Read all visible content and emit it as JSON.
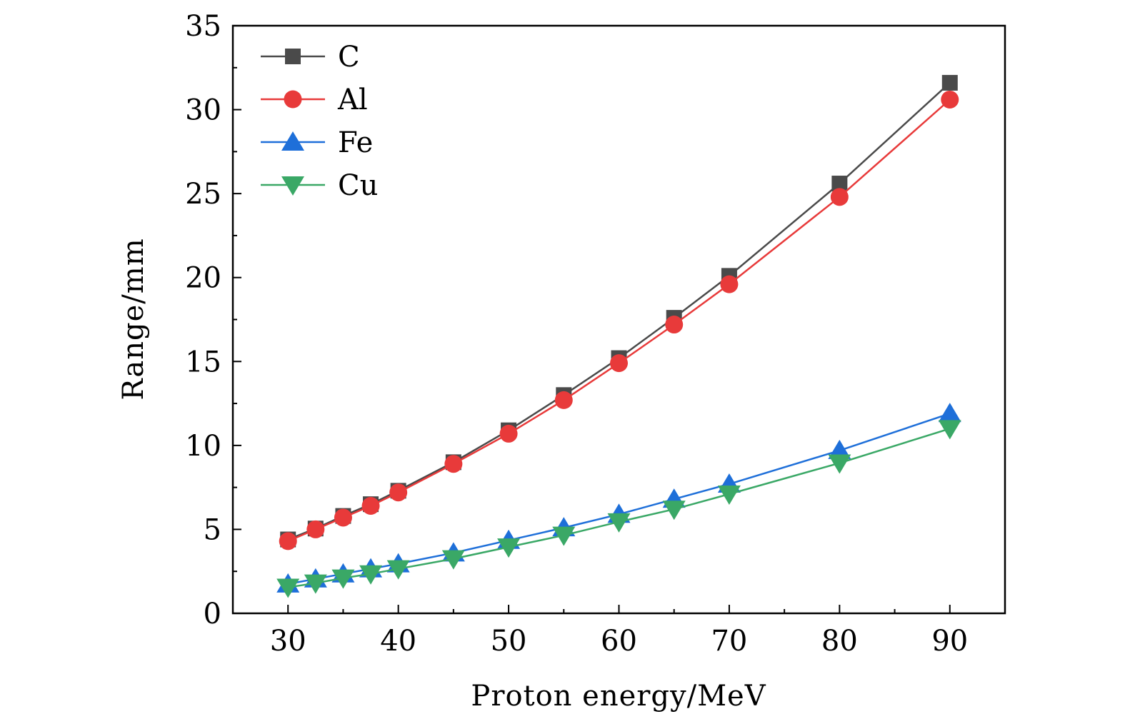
{
  "chart_data": {
    "type": "line",
    "xlabel": "Proton energy/MeV",
    "ylabel": "Range/mm",
    "xlim": [
      25,
      95
    ],
    "ylim": [
      0,
      35
    ],
    "xticks": [
      30,
      40,
      50,
      60,
      70,
      80,
      90
    ],
    "yticks": [
      0,
      5,
      10,
      15,
      20,
      25,
      30,
      35
    ],
    "grid": false,
    "legend_position": "top-left",
    "x": [
      30,
      32.5,
      35,
      37.5,
      40,
      45,
      50,
      55,
      60,
      65,
      70,
      80,
      90
    ],
    "series": [
      {
        "name": "C",
        "marker": "square",
        "color": "#4a4a4a",
        "values": [
          4.4,
          5.05,
          5.8,
          6.5,
          7.3,
          9.0,
          10.9,
          13.0,
          15.2,
          17.6,
          20.1,
          25.6,
          31.6
        ]
      },
      {
        "name": "Al",
        "marker": "circle",
        "color": "#e83a3a",
        "values": [
          4.3,
          5.0,
          5.7,
          6.4,
          7.2,
          8.9,
          10.7,
          12.7,
          14.9,
          17.2,
          19.6,
          24.8,
          30.6
        ]
      },
      {
        "name": "Fe",
        "marker": "triangle-up",
        "color": "#1e6fd9",
        "values": [
          1.75,
          2.05,
          2.35,
          2.65,
          2.95,
          3.6,
          4.35,
          5.1,
          5.9,
          6.8,
          7.7,
          9.7,
          11.9
        ]
      },
      {
        "name": "Cu",
        "marker": "triangle-down",
        "color": "#3aa866",
        "values": [
          1.55,
          1.8,
          2.1,
          2.35,
          2.65,
          3.25,
          3.95,
          4.65,
          5.45,
          6.2,
          7.1,
          8.95,
          11.0
        ]
      }
    ]
  }
}
